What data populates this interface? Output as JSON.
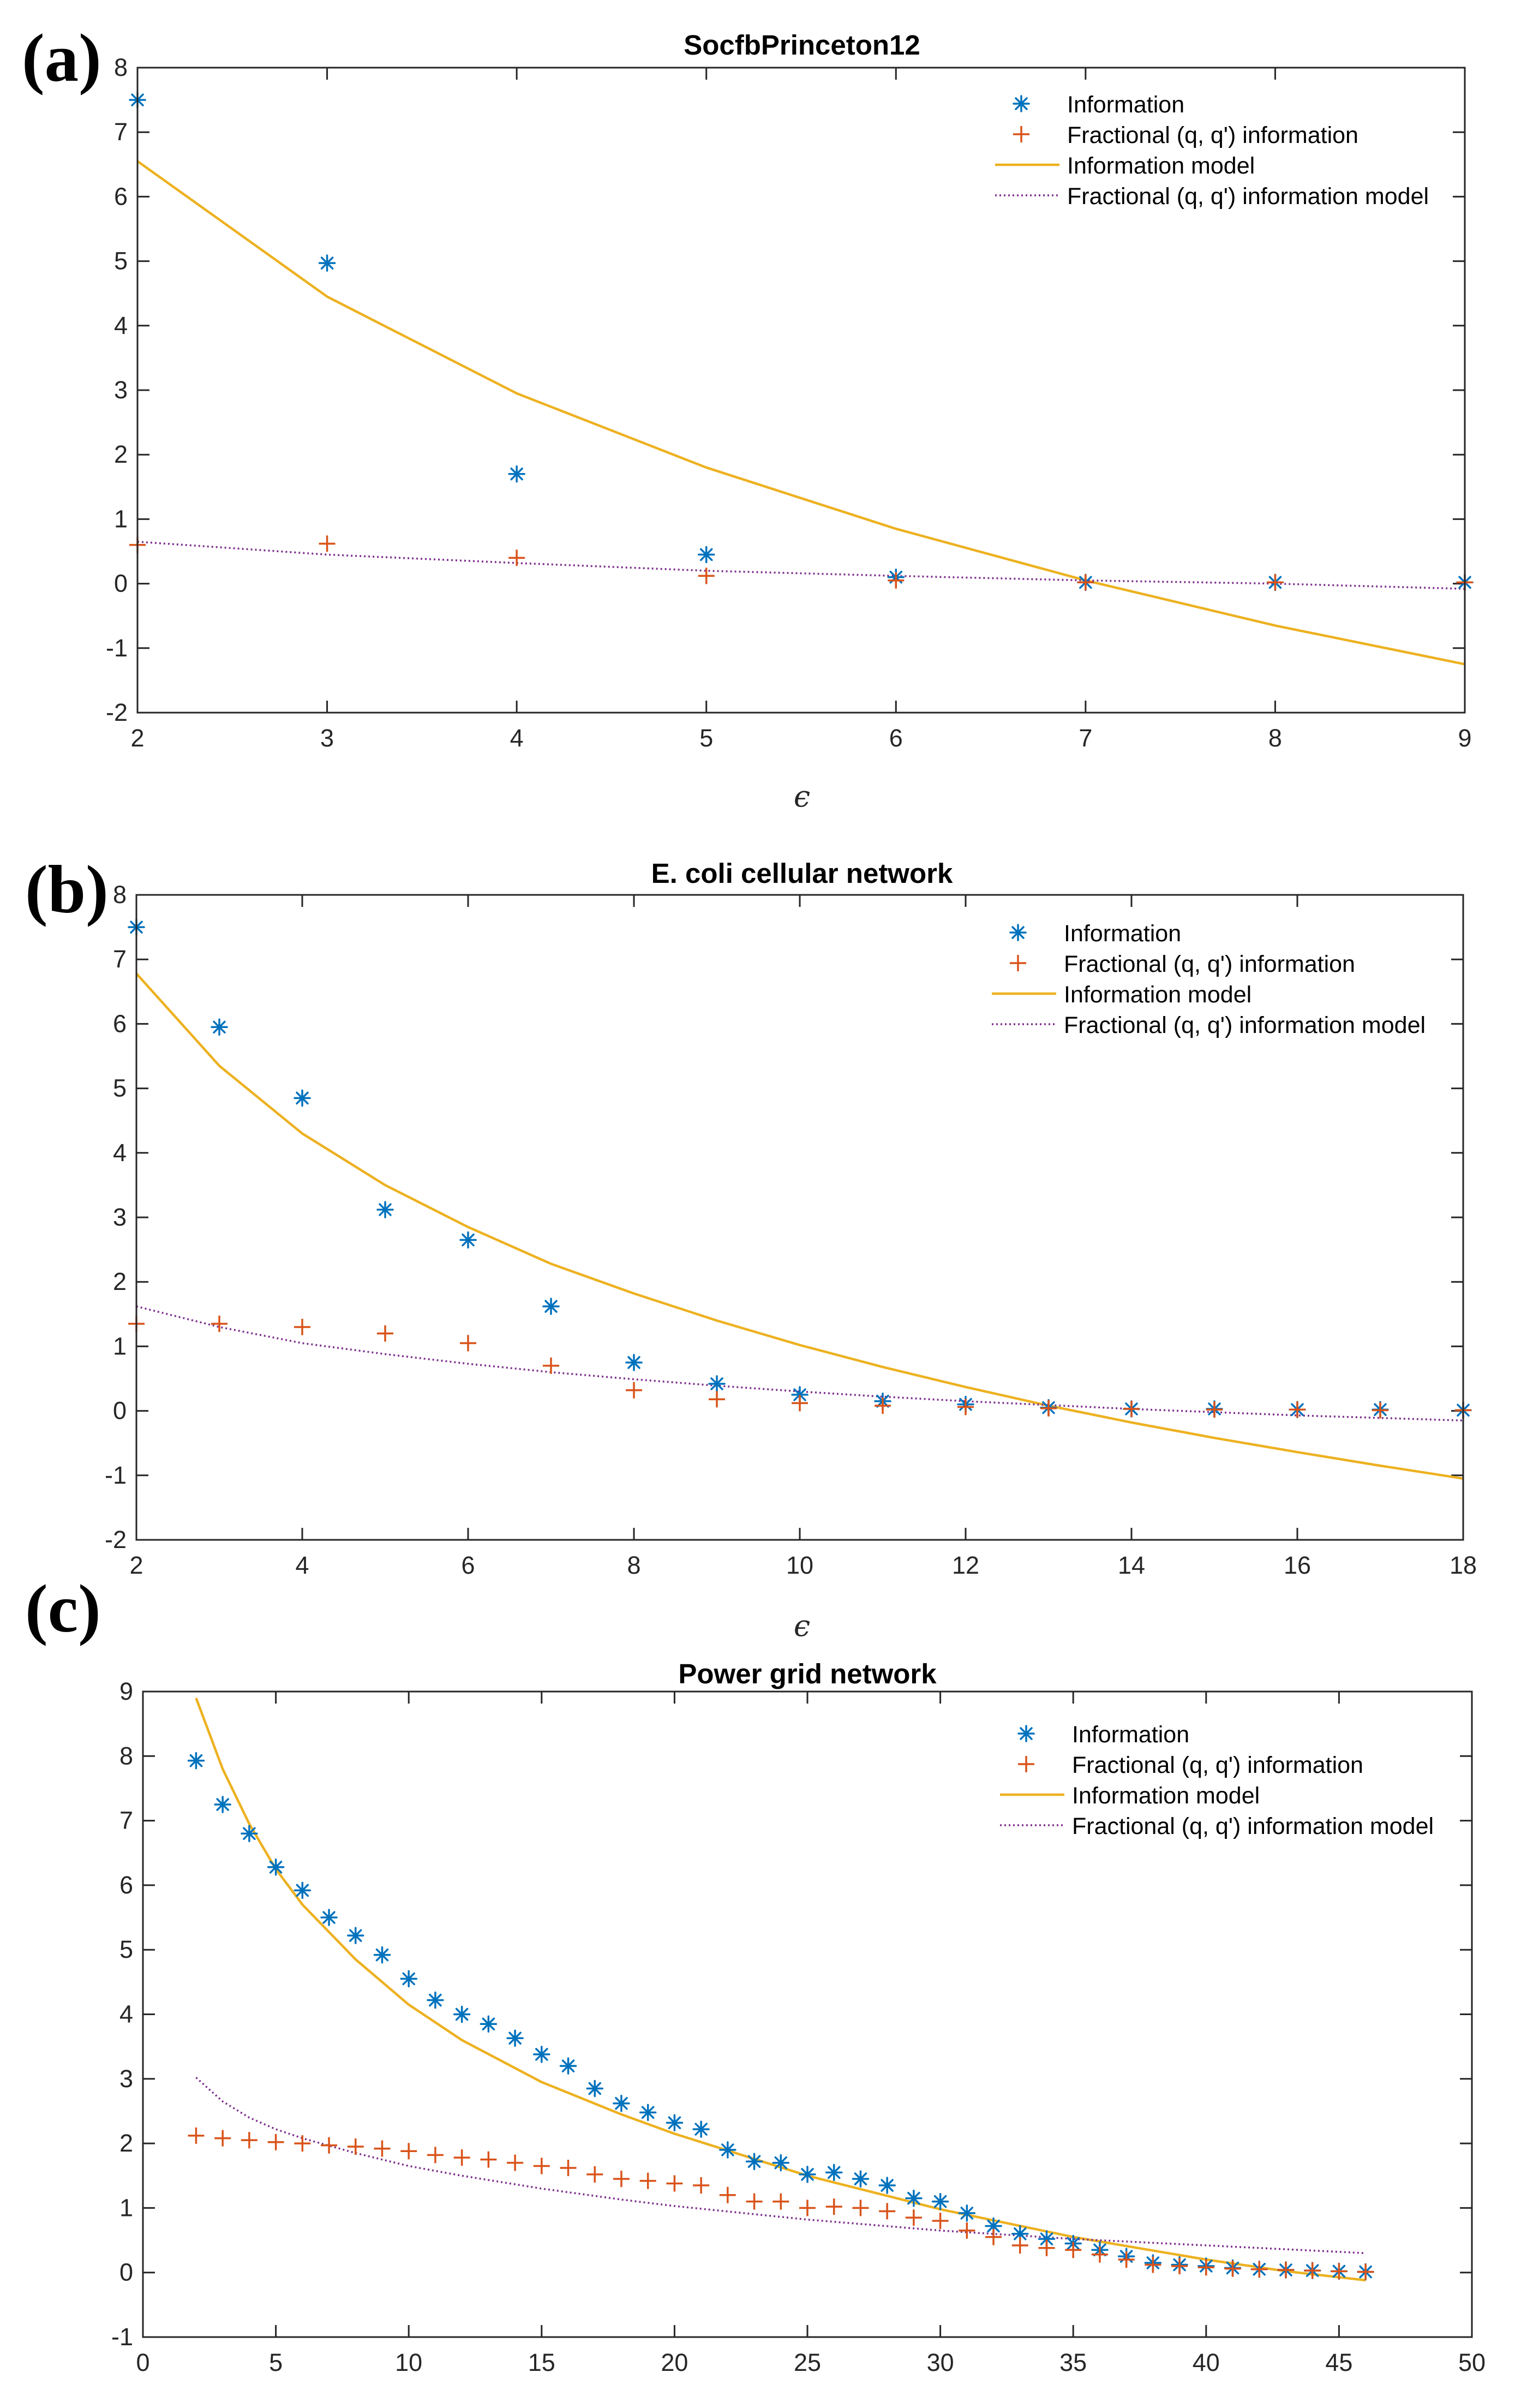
{
  "colors": {
    "information": "#0072BD",
    "fractional": "#D95319",
    "information_model": "#EDB120",
    "fractional_model": "#7E2F8E",
    "axis": "#262626"
  },
  "chart_data": [
    {
      "panel_label": "(a)",
      "type": "line",
      "title": "SocfbPrinceton12",
      "xlabel": "ϵ",
      "ylabel": "",
      "xlim": [
        2,
        9
      ],
      "ylim": [
        -2,
        8
      ],
      "xticks": [
        2,
        3,
        4,
        5,
        6,
        7,
        8,
        9
      ],
      "yticks": [
        -2,
        -1,
        0,
        1,
        2,
        3,
        4,
        5,
        6,
        7,
        8
      ],
      "legend_position": "top-right",
      "legend": [
        "Information",
        "Fractional (q, q') information",
        "Information model",
        "Fractional (q, q') information model"
      ],
      "series": [
        {
          "name": "Information",
          "style": "asterisk",
          "x": [
            2,
            3,
            4,
            5,
            6,
            7,
            8,
            9
          ],
          "values": [
            7.5,
            4.97,
            1.7,
            0.45,
            0.1,
            0.02,
            0.02,
            0.02
          ]
        },
        {
          "name": "Fractional (q, q') information",
          "style": "plus",
          "x": [
            2,
            3,
            4,
            5,
            6,
            7,
            8,
            9
          ],
          "values": [
            0.6,
            0.62,
            0.4,
            0.12,
            0.05,
            0.02,
            0.02,
            0.02
          ]
        },
        {
          "name": "Information model",
          "style": "solid",
          "x": [
            2,
            3,
            4,
            5,
            6,
            7,
            8,
            9
          ],
          "values": [
            6.55,
            4.45,
            2.95,
            1.8,
            0.85,
            0.05,
            -0.65,
            -1.25
          ]
        },
        {
          "name": "Fractional (q, q') information model",
          "style": "dotted",
          "x": [
            2,
            3,
            4,
            5,
            6,
            7,
            8,
            9
          ],
          "values": [
            0.65,
            0.45,
            0.32,
            0.2,
            0.12,
            0.05,
            0.0,
            -0.08
          ]
        }
      ]
    },
    {
      "panel_label": "(b)",
      "type": "line",
      "title": "E. coli cellular network",
      "xlabel": "ϵ",
      "ylabel": "",
      "xlim": [
        2,
        18
      ],
      "ylim": [
        -2,
        8
      ],
      "xticks": [
        2,
        4,
        6,
        8,
        10,
        12,
        14,
        16,
        18
      ],
      "yticks": [
        -2,
        -1,
        0,
        1,
        2,
        3,
        4,
        5,
        6,
        7,
        8
      ],
      "legend_position": "top-right",
      "legend": [
        "Information",
        "Fractional (q, q') information",
        "Information model",
        "Fractional (q, q') information model"
      ],
      "series": [
        {
          "name": "Information",
          "style": "asterisk",
          "x": [
            2,
            3,
            4,
            5,
            6,
            7,
            8,
            9,
            10,
            11,
            12,
            13,
            14,
            15,
            16,
            17,
            18
          ],
          "values": [
            7.5,
            5.95,
            4.85,
            3.12,
            2.65,
            1.62,
            0.75,
            0.42,
            0.25,
            0.15,
            0.1,
            0.05,
            0.03,
            0.03,
            0.02,
            0.02,
            0.01
          ]
        },
        {
          "name": "Fractional (q, q') information",
          "style": "plus",
          "x": [
            2,
            3,
            4,
            5,
            6,
            7,
            8,
            9,
            10,
            11,
            12,
            13,
            14,
            15,
            16,
            17,
            18
          ],
          "values": [
            1.35,
            1.35,
            1.3,
            1.2,
            1.05,
            0.7,
            0.32,
            0.18,
            0.12,
            0.08,
            0.06,
            0.04,
            0.03,
            0.02,
            0.02,
            0.01,
            0.01
          ]
        },
        {
          "name": "Information model",
          "style": "solid",
          "x": [
            2,
            3,
            4,
            5,
            6,
            7,
            8,
            9,
            10,
            11,
            12,
            13,
            14,
            15,
            16,
            17,
            18
          ],
          "values": [
            6.78,
            5.35,
            4.3,
            3.5,
            2.85,
            2.28,
            1.82,
            1.4,
            1.02,
            0.68,
            0.37,
            0.08,
            -0.18,
            -0.42,
            -0.64,
            -0.85,
            -1.05
          ]
        },
        {
          "name": "Fractional (q, q') information model",
          "style": "dotted",
          "x": [
            2,
            3,
            4,
            5,
            6,
            7,
            8,
            9,
            10,
            11,
            12,
            13,
            14,
            15,
            16,
            17,
            18
          ],
          "values": [
            1.62,
            1.3,
            1.05,
            0.88,
            0.73,
            0.6,
            0.49,
            0.39,
            0.3,
            0.22,
            0.15,
            0.09,
            0.03,
            -0.02,
            -0.07,
            -0.11,
            -0.15
          ]
        }
      ]
    },
    {
      "panel_label": "(c)",
      "type": "line",
      "title": "Power grid network",
      "xlabel": "",
      "ylabel": "",
      "xlim": [
        0,
        50
      ],
      "ylim": [
        -1,
        9
      ],
      "xticks": [
        0,
        5,
        10,
        15,
        20,
        25,
        30,
        35,
        40,
        45,
        50
      ],
      "yticks": [
        -1,
        0,
        1,
        2,
        3,
        4,
        5,
        6,
        7,
        8,
        9
      ],
      "legend_position": "top-right",
      "legend": [
        "Information",
        "Fractional (q, q') information",
        "Information model",
        "Fractional (q, q') information model"
      ],
      "series": [
        {
          "name": "Information",
          "style": "asterisk",
          "x": [
            2,
            3,
            4,
            5,
            6,
            7,
            8,
            9,
            10,
            11,
            12,
            13,
            14,
            15,
            16,
            17,
            18,
            19,
            20,
            21,
            22,
            23,
            24,
            25,
            26,
            27,
            28,
            29,
            30,
            31,
            32,
            33,
            34,
            35,
            36,
            37,
            38,
            39,
            40,
            41,
            42,
            43,
            44,
            45,
            46
          ],
          "values": [
            7.93,
            7.25,
            6.8,
            6.28,
            5.92,
            5.5,
            5.22,
            4.92,
            4.55,
            4.22,
            4.0,
            3.85,
            3.63,
            3.38,
            3.2,
            2.85,
            2.62,
            2.48,
            2.32,
            2.22,
            1.9,
            1.72,
            1.7,
            1.52,
            1.55,
            1.45,
            1.35,
            1.15,
            1.1,
            0.92,
            0.72,
            0.6,
            0.52,
            0.45,
            0.35,
            0.25,
            0.15,
            0.12,
            0.1,
            0.07,
            0.05,
            0.04,
            0.03,
            0.02,
            0.01
          ]
        },
        {
          "name": "Fractional (q, q') information",
          "style": "plus",
          "x": [
            2,
            3,
            4,
            5,
            6,
            7,
            8,
            9,
            10,
            11,
            12,
            13,
            14,
            15,
            16,
            17,
            18,
            19,
            20,
            21,
            22,
            23,
            24,
            25,
            26,
            27,
            28,
            29,
            30,
            31,
            32,
            33,
            34,
            35,
            36,
            37,
            38,
            39,
            40,
            41,
            42,
            43,
            44,
            45,
            46
          ],
          "values": [
            2.12,
            2.08,
            2.05,
            2.02,
            2.0,
            1.97,
            1.95,
            1.92,
            1.88,
            1.82,
            1.78,
            1.75,
            1.7,
            1.65,
            1.62,
            1.52,
            1.45,
            1.42,
            1.38,
            1.35,
            1.2,
            1.1,
            1.1,
            1.0,
            1.02,
            1.0,
            0.95,
            0.85,
            0.8,
            0.65,
            0.55,
            0.42,
            0.38,
            0.35,
            0.28,
            0.2,
            0.12,
            0.1,
            0.08,
            0.06,
            0.05,
            0.04,
            0.03,
            0.02,
            0.01
          ]
        },
        {
          "name": "Information model",
          "style": "solid",
          "x": [
            2,
            3,
            4,
            5,
            6,
            8,
            10,
            12,
            15,
            18,
            20,
            25,
            30,
            35,
            40,
            43,
            46
          ],
          "values": [
            8.9,
            7.8,
            6.95,
            6.25,
            5.7,
            4.85,
            4.15,
            3.6,
            2.95,
            2.45,
            2.15,
            1.5,
            0.98,
            0.55,
            0.2,
            0.02,
            -0.12
          ]
        },
        {
          "name": "Fractional (q, q') information model",
          "style": "dotted",
          "x": [
            2,
            3,
            4,
            5,
            6,
            8,
            10,
            12,
            15,
            18,
            20,
            25,
            30,
            35,
            40,
            43,
            46
          ],
          "values": [
            3.02,
            2.65,
            2.4,
            2.22,
            2.08,
            1.85,
            1.65,
            1.5,
            1.3,
            1.13,
            1.03,
            0.82,
            0.65,
            0.52,
            0.42,
            0.36,
            0.3
          ]
        }
      ]
    }
  ]
}
